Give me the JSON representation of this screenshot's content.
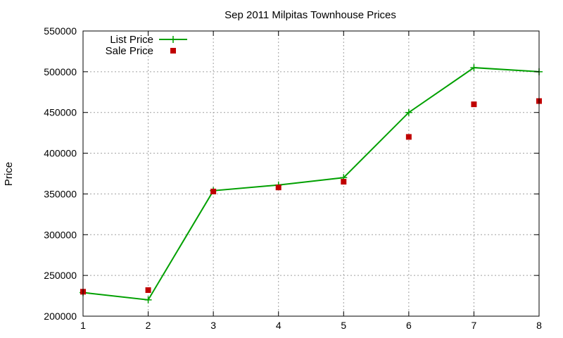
{
  "chart_data": {
    "type": "line",
    "title": "Sep 2011 Milpitas Townhouse Prices",
    "xlabel": "",
    "ylabel": "Price",
    "xlim": [
      1,
      8
    ],
    "ylim": [
      200000,
      550000
    ],
    "x_ticks": [
      "1",
      "2",
      "3",
      "4",
      "5",
      "6",
      "7",
      "8"
    ],
    "y_ticks": [
      "200000",
      "250000",
      "300000",
      "350000",
      "400000",
      "450000",
      "500000",
      "550000"
    ],
    "grid": true,
    "legend_position": "top-left",
    "series": [
      {
        "name": "List Price",
        "style": "line-plus",
        "color": "#00a000",
        "x": [
          1,
          2,
          3,
          4,
          5,
          6,
          7,
          8
        ],
        "values": [
          229000,
          220000,
          354000,
          361000,
          370000,
          450000,
          505000,
          500000
        ]
      },
      {
        "name": "Sale Price",
        "style": "square-points",
        "color": "#c00000",
        "x": [
          1,
          2,
          3,
          4,
          5,
          6,
          7,
          8
        ],
        "values": [
          230000,
          232000,
          353000,
          358000,
          365000,
          420000,
          460000,
          464000
        ]
      }
    ]
  }
}
